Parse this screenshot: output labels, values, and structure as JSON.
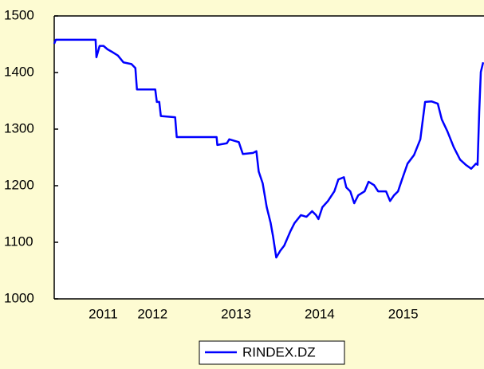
{
  "chart_data": {
    "type": "line",
    "x": [
      2011.324,
      2011.343,
      2011.819,
      2011.829,
      2011.867,
      2011.914,
      2011.962,
      2012.01,
      2012.086,
      2012.152,
      2012.248,
      2012.295,
      2012.314,
      2012.533,
      2012.552,
      2012.581,
      2012.6,
      2012.771,
      2012.79,
      2013.267,
      2013.276,
      2013.39,
      2013.419,
      2013.533,
      2013.581,
      2013.705,
      2013.743,
      2013.771,
      2013.819,
      2013.867,
      2013.914,
      2013.943,
      2013.981,
      2014.029,
      2014.076,
      2014.152,
      2014.2,
      2014.276,
      2014.343,
      2014.41,
      2014.457,
      2014.486,
      2014.533,
      2014.6,
      2014.676,
      2014.724,
      2014.79,
      2014.819,
      2014.867,
      2014.914,
      2014.962,
      2015.038,
      2015.086,
      2015.152,
      2015.2,
      2015.295,
      2015.343,
      2015.39,
      2015.438,
      2015.486,
      2015.552,
      2015.629,
      2015.705,
      2015.762,
      2015.838,
      2015.914,
      2015.962,
      2016.029,
      2016.105,
      2016.181,
      2016.248,
      2016.314,
      2016.371,
      2016.39,
      2016.41,
      2016.429,
      2016.457
    ],
    "series": [
      {
        "name": "RINDEX.DZ",
        "color": "#0000ff",
        "values": [
          1451,
          1458,
          1458,
          1427,
          1447,
          1447,
          1441,
          1437,
          1430,
          1418,
          1415,
          1408,
          1370,
          1370,
          1348,
          1348,
          1323,
          1321,
          1286,
          1286,
          1272,
          1275,
          1282,
          1277,
          1256,
          1258,
          1261,
          1225,
          1204,
          1162,
          1134,
          1110,
          1073,
          1085,
          1094,
          1120,
          1134,
          1148,
          1145,
          1155,
          1148,
          1141,
          1162,
          1173,
          1190,
          1211,
          1215,
          1197,
          1190,
          1169,
          1183,
          1190,
          1207,
          1201,
          1190,
          1190,
          1173,
          1183,
          1190,
          1211,
          1239,
          1254,
          1282,
          1348,
          1349,
          1345,
          1317,
          1296,
          1268,
          1246,
          1237,
          1230,
          1239,
          1237,
          1331,
          1401,
          1418
        ]
      }
    ],
    "xlim": [
      2011.324,
      2016.467
    ],
    "xticks": [
      {
        "value": 2011.91,
        "label": "2011"
      },
      {
        "value": 2012.5,
        "label": "2012"
      },
      {
        "value": 2013.5,
        "label": "2013"
      },
      {
        "value": 2014.5,
        "label": "2014"
      },
      {
        "value": 2015.5,
        "label": "2015"
      }
    ],
    "ylim": [
      1000,
      1500
    ],
    "yticks": [
      1000,
      1100,
      1200,
      1300,
      1400,
      1500
    ],
    "grid": false
  }
}
